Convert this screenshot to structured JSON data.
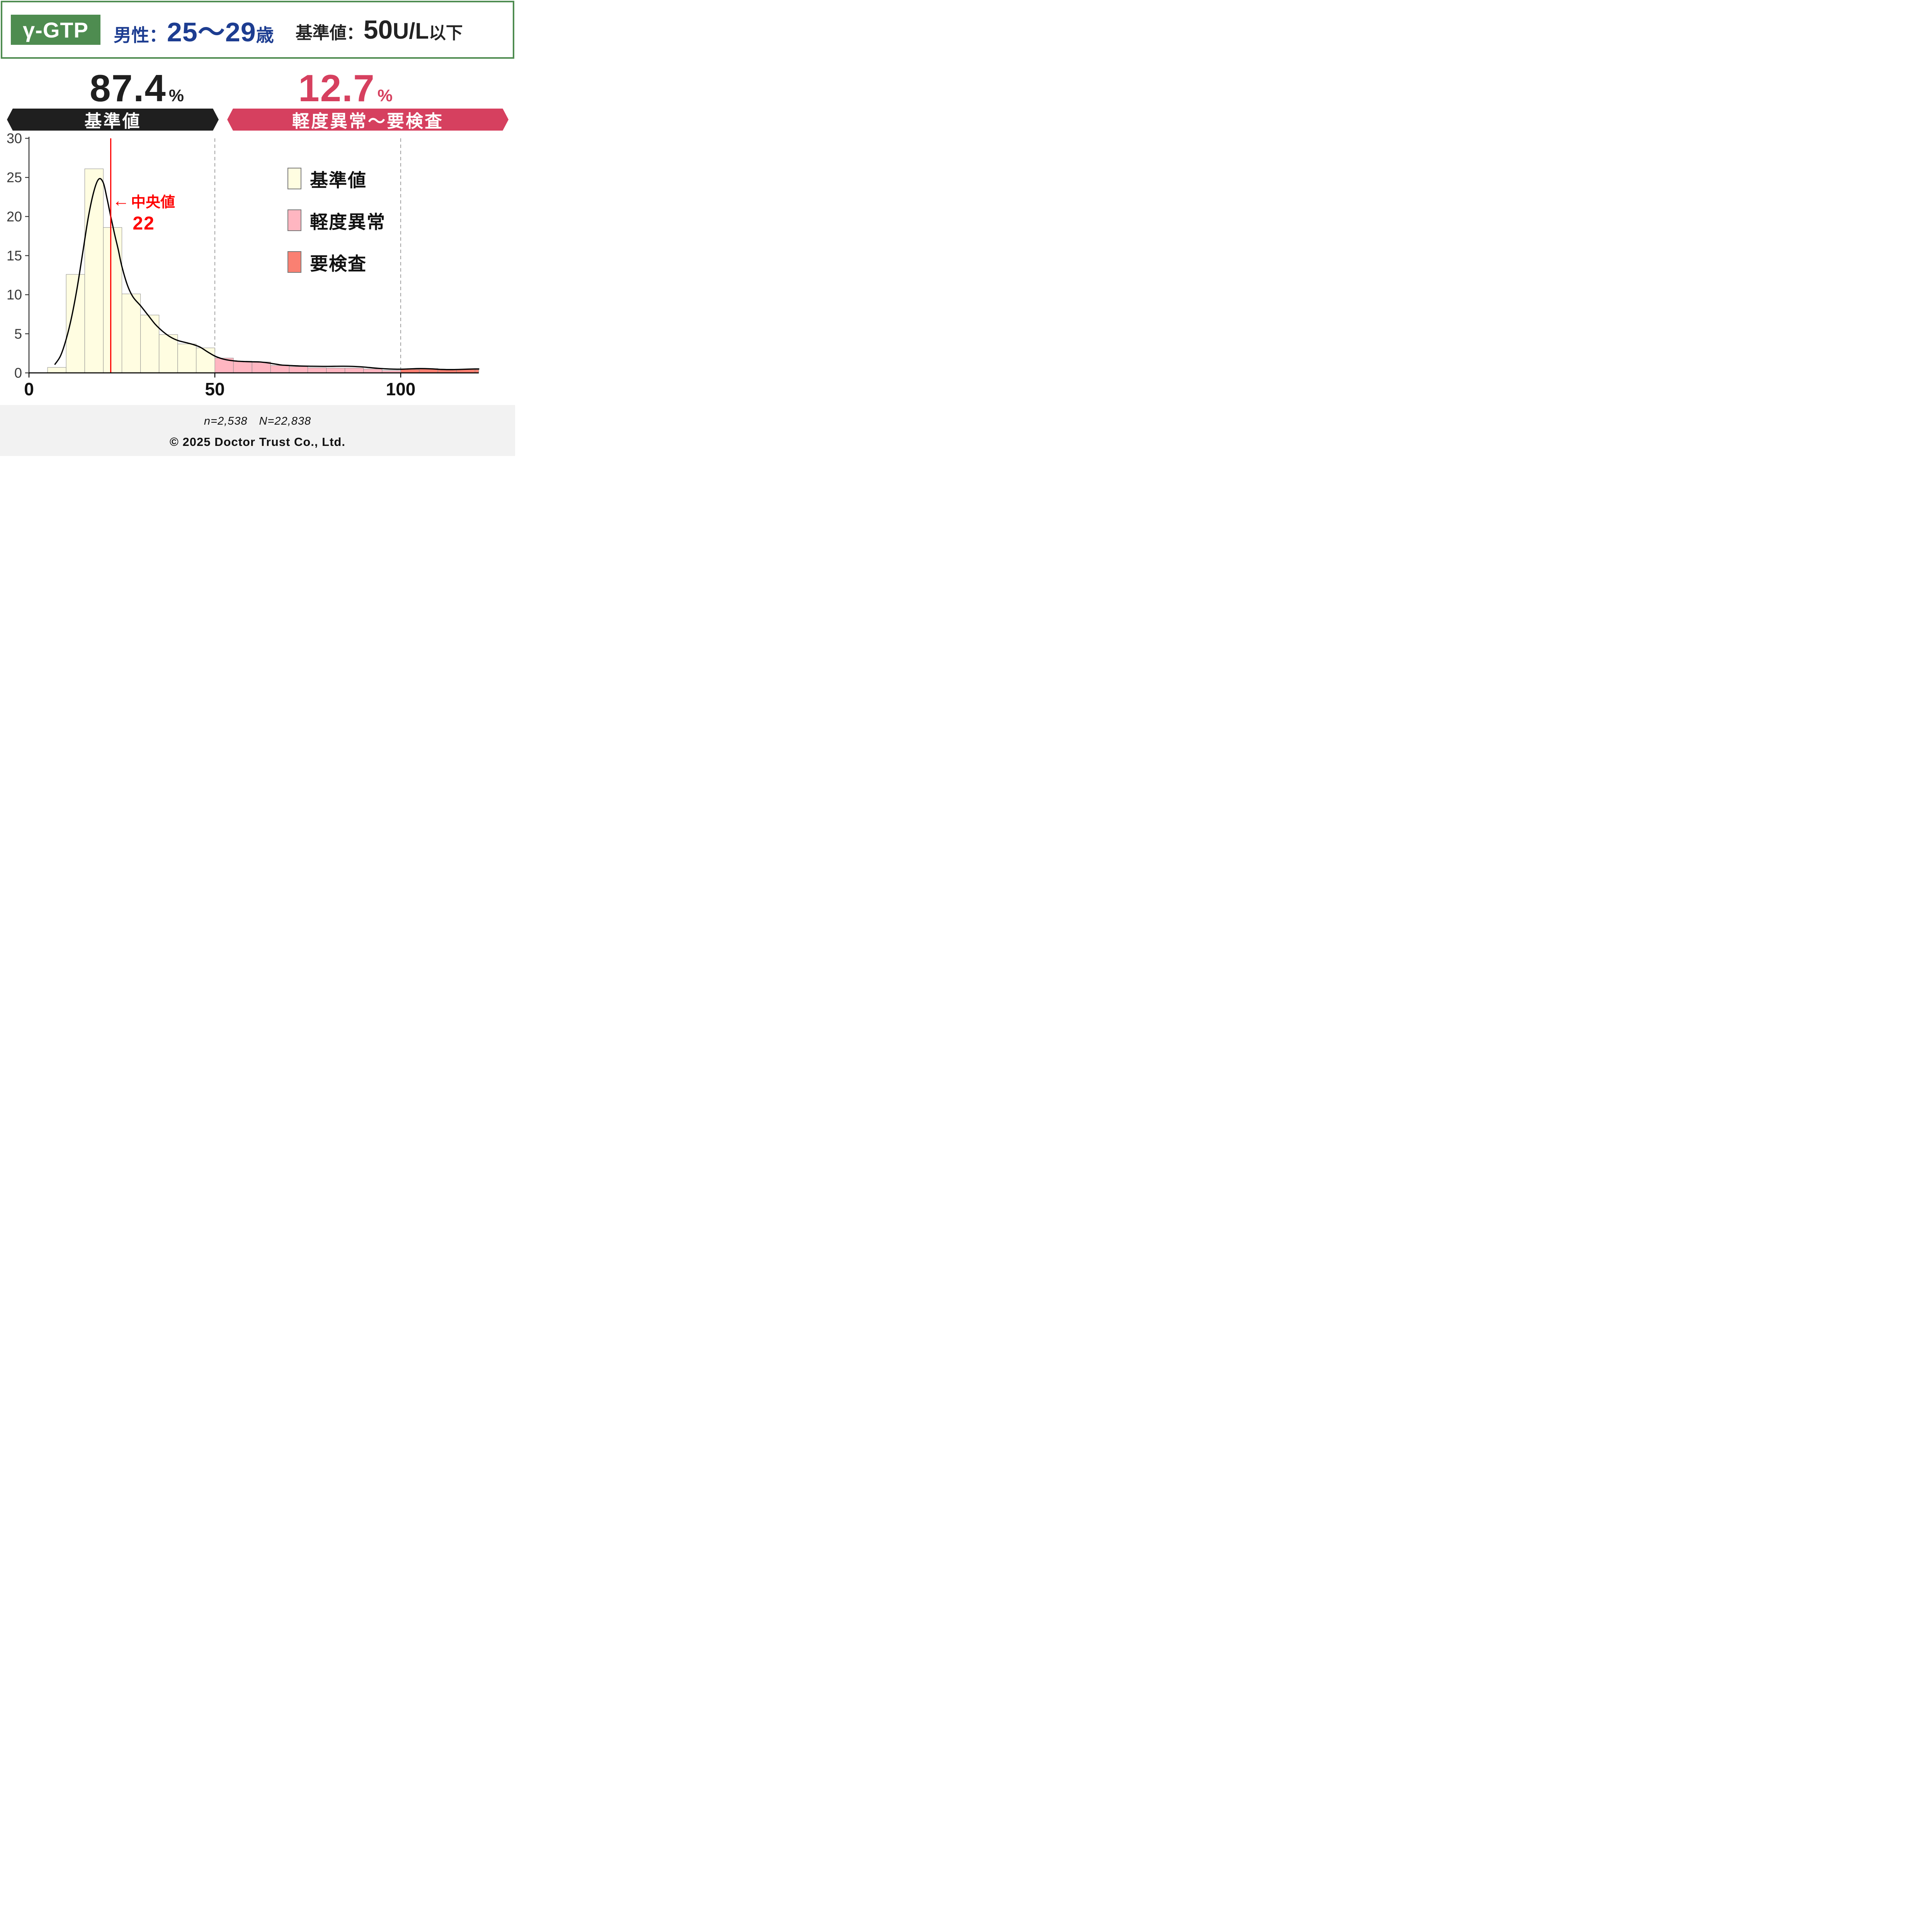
{
  "header": {
    "test_name": "γ-GTP",
    "population": {
      "prefix": "男性：",
      "range": "25～29",
      "suffix": " 歳"
    },
    "reference": {
      "label": "基準値：",
      "value": "50",
      "unit": " U/L ",
      "suffix": "以下"
    }
  },
  "summary": {
    "normal": {
      "value": "87.4",
      "percent_sign": "%",
      "band_label": "基準値"
    },
    "abnormal": {
      "value": "12.7",
      "percent_sign": "%",
      "band_label": "軽度異常〜要検査"
    }
  },
  "median_note": {
    "arrow": "←",
    "label": "中央値",
    "value": "22"
  },
  "legend": {
    "items": [
      {
        "label": "基準値",
        "color": "#fffde1"
      },
      {
        "label": "軽度異常",
        "color": "#ffb6c1"
      },
      {
        "label": "要検査",
        "color": "#fa8072"
      }
    ]
  },
  "footer": {
    "sample": "n=2,538　N=22,838",
    "copyright": "© 2025 Doctor Trust Co., Ltd."
  },
  "colors": {
    "header_green": "#4e8c50",
    "population_blue": "#1d3d91",
    "banner_black": "#1f1f1f",
    "banner_crimson": "#d6405f",
    "bar_normal": "#fffde1",
    "bar_mild": "#ffb6c1",
    "bar_attention": "#fa8072",
    "bar_border": "#8c8c8c",
    "median_red": "#fe0000",
    "guide_gray": "#888888",
    "axis_gray": "#3a3a3a",
    "footer_bg": "#f2f2f2"
  },
  "chart_data": {
    "type": "bar",
    "subtype": "histogram_with_density_curve",
    "title": "γ-GTP distribution, males 25-29",
    "xlabel": "",
    "ylabel": "",
    "xlim": [
      0,
      121
    ],
    "ylim": [
      0,
      30
    ],
    "x_ticks": [
      0,
      50,
      100
    ],
    "y_ticks": [
      0,
      5,
      10,
      15,
      20,
      25,
      30
    ],
    "guides": [
      50,
      100
    ],
    "median_x": 22,
    "grid": false,
    "legend_position": "upper right",
    "category_colors": {
      "normal": "#fffde1",
      "mild": "#ffb6c1",
      "attention": "#fa8072"
    },
    "bins": [
      {
        "x0": 5,
        "x1": 10,
        "h": 0.7,
        "cat": "normal"
      },
      {
        "x0": 10,
        "x1": 15,
        "h": 12.6,
        "cat": "normal"
      },
      {
        "x0": 15,
        "x1": 20,
        "h": 26.1,
        "cat": "normal"
      },
      {
        "x0": 20,
        "x1": 25,
        "h": 18.6,
        "cat": "normal"
      },
      {
        "x0": 25,
        "x1": 30,
        "h": 10.1,
        "cat": "normal"
      },
      {
        "x0": 30,
        "x1": 35,
        "h": 7.4,
        "cat": "normal"
      },
      {
        "x0": 35,
        "x1": 40,
        "h": 4.9,
        "cat": "normal"
      },
      {
        "x0": 40,
        "x1": 45,
        "h": 3.7,
        "cat": "normal"
      },
      {
        "x0": 45,
        "x1": 50,
        "h": 3.2,
        "cat": "normal"
      },
      {
        "x0": 50,
        "x1": 55,
        "h": 1.9,
        "cat": "mild"
      },
      {
        "x0": 55,
        "x1": 60,
        "h": 1.5,
        "cat": "mild"
      },
      {
        "x0": 60,
        "x1": 65,
        "h": 1.4,
        "cat": "mild"
      },
      {
        "x0": 65,
        "x1": 70,
        "h": 0.95,
        "cat": "mild"
      },
      {
        "x0": 70,
        "x1": 75,
        "h": 0.8,
        "cat": "mild"
      },
      {
        "x0": 75,
        "x1": 80,
        "h": 0.65,
        "cat": "mild"
      },
      {
        "x0": 80,
        "x1": 85,
        "h": 0.62,
        "cat": "mild"
      },
      {
        "x0": 85,
        "x1": 90,
        "h": 0.62,
        "cat": "mild"
      },
      {
        "x0": 90,
        "x1": 95,
        "h": 0.5,
        "cat": "mild"
      },
      {
        "x0": 95,
        "x1": 100,
        "h": 0.3,
        "cat": "mild"
      },
      {
        "x0": 100,
        "x1": 105,
        "h": 0.45,
        "cat": "attention"
      },
      {
        "x0": 105,
        "x1": 110,
        "h": 0.55,
        "cat": "attention"
      },
      {
        "x0": 110,
        "x1": 115,
        "h": 0.4,
        "cat": "attention"
      },
      {
        "x0": 115,
        "x1": 120,
        "h": 0.45,
        "cat": "attention"
      },
      {
        "x0": 120,
        "x1": 121,
        "h": 0.42,
        "cat": "attention"
      }
    ],
    "density_curve": [
      [
        7,
        1.1
      ],
      [
        8.5,
        2.2
      ],
      [
        10,
        4.3
      ],
      [
        11.5,
        7.2
      ],
      [
        13,
        11.0
      ],
      [
        14.5,
        15.5
      ],
      [
        16,
        20.0
      ],
      [
        17.5,
        23.3
      ],
      [
        18.8,
        24.8
      ],
      [
        20,
        24.3
      ],
      [
        21,
        22.3
      ],
      [
        22,
        20.0
      ],
      [
        23,
        17.8
      ],
      [
        24,
        15.8
      ],
      [
        25,
        13.6
      ],
      [
        26.5,
        11.2
      ],
      [
        28,
        9.7
      ],
      [
        30,
        8.6
      ],
      [
        32,
        7.4
      ],
      [
        34,
        6.2
      ],
      [
        36,
        5.3
      ],
      [
        38,
        4.6
      ],
      [
        40,
        4.15
      ],
      [
        42,
        3.9
      ],
      [
        44,
        3.65
      ],
      [
        46,
        3.3
      ],
      [
        48,
        2.7
      ],
      [
        50,
        2.15
      ],
      [
        52,
        1.8
      ],
      [
        54,
        1.6
      ],
      [
        56,
        1.5
      ],
      [
        58,
        1.45
      ],
      [
        60,
        1.42
      ],
      [
        62,
        1.4
      ],
      [
        64,
        1.3
      ],
      [
        66,
        1.15
      ],
      [
        68,
        1.0
      ],
      [
        70,
        0.95
      ],
      [
        73,
        0.88
      ],
      [
        76,
        0.85
      ],
      [
        80,
        0.83
      ],
      [
        84,
        0.85
      ],
      [
        87,
        0.83
      ],
      [
        90,
        0.75
      ],
      [
        93,
        0.62
      ],
      [
        96,
        0.52
      ],
      [
        99,
        0.47
      ],
      [
        102,
        0.5
      ],
      [
        105,
        0.55
      ],
      [
        108,
        0.52
      ],
      [
        111,
        0.44
      ],
      [
        114,
        0.42
      ],
      [
        117,
        0.46
      ],
      [
        120,
        0.5
      ],
      [
        121,
        0.5
      ]
    ]
  }
}
